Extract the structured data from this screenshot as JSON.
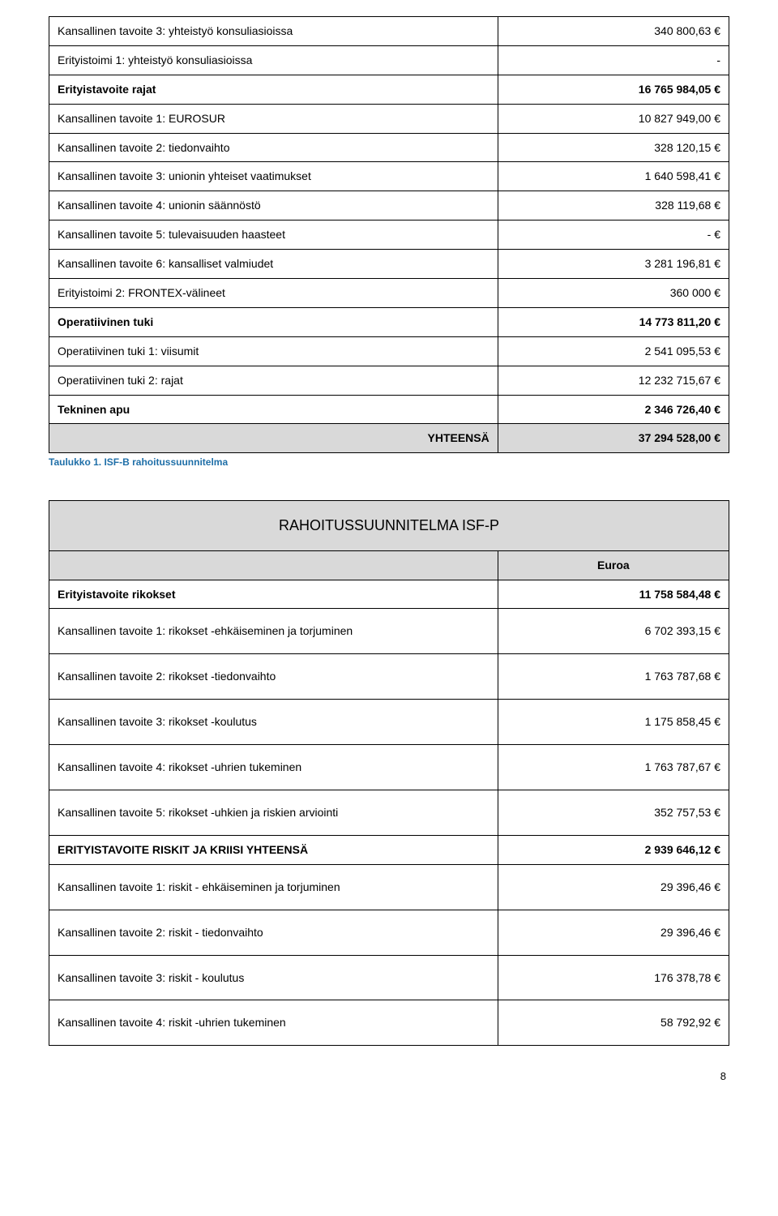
{
  "table1": {
    "rows": [
      {
        "label": "Kansallinen tavoite 3: yhteistyö konsuliasioissa",
        "value": "340 800,63 €",
        "labelBold": false,
        "valueBold": false,
        "bg": false
      },
      {
        "label": "Erityistoimi 1: yhteistyö konsuliasioissa",
        "value": "-",
        "labelBold": false,
        "valueBold": false,
        "bg": false
      },
      {
        "label": "Erityistavoite rajat",
        "value": "16 765 984,05 €",
        "labelBold": true,
        "valueBold": true,
        "bg": false
      },
      {
        "label": "Kansallinen tavoite 1: EUROSUR",
        "value": "10 827 949,00 €",
        "labelBold": false,
        "valueBold": false,
        "bg": false
      },
      {
        "label": "Kansallinen tavoite 2: tiedonvaihto",
        "value": "328 120,15 €",
        "labelBold": false,
        "valueBold": false,
        "bg": false
      },
      {
        "label": "Kansallinen tavoite 3: unionin yhteiset vaatimukset",
        "value": "1 640 598,41 €",
        "labelBold": false,
        "valueBold": false,
        "bg": false
      },
      {
        "label": "Kansallinen tavoite 4: unionin säännöstö",
        "value": "328 119,68 €",
        "labelBold": false,
        "valueBold": false,
        "bg": false
      },
      {
        "label": "Kansallinen tavoite 5: tulevaisuuden haasteet",
        "value": "- €",
        "labelBold": false,
        "valueBold": false,
        "bg": false
      },
      {
        "label": "Kansallinen tavoite 6: kansalliset valmiudet",
        "value": "3 281 196,81 €",
        "labelBold": false,
        "valueBold": false,
        "bg": false
      },
      {
        "label": "Erityistoimi 2: FRONTEX-välineet",
        "value": "360 000 €",
        "labelBold": false,
        "valueBold": false,
        "bg": false
      },
      {
        "label": "Operatiivinen tuki",
        "value": "14 773 811,20 €",
        "labelBold": true,
        "valueBold": true,
        "bg": false
      },
      {
        "label": "Operatiivinen tuki 1: viisumit",
        "value": "2 541 095,53 €",
        "labelBold": false,
        "valueBold": false,
        "bg": false
      },
      {
        "label": "Operatiivinen tuki 2: rajat",
        "value": "12 232 715,67 €",
        "labelBold": false,
        "valueBold": false,
        "bg": false
      },
      {
        "label": "Tekninen apu",
        "value": "2 346 726,40 €",
        "labelBold": true,
        "valueBold": true,
        "bg": false
      },
      {
        "label": "YHTEENSÄ",
        "value": "37 294 528,00 €",
        "labelBold": true,
        "valueBold": true,
        "bg": true,
        "labelRight": true
      }
    ],
    "caption": "Taulukko 1. ISF-B rahoitussuunnitelma"
  },
  "table2": {
    "title": "RAHOITUSSUUNNITELMA ISF-P",
    "euroa": "Euroa",
    "rows": [
      {
        "label": "Erityistavoite rikokset",
        "value": "11 758 584,48 €",
        "labelBold": true,
        "valueBold": true
      },
      {
        "label": "Kansallinen tavoite 1: rikokset -ehkäiseminen ja torjuminen",
        "value": "6 702 393,15 €",
        "labelBold": false,
        "valueBold": false
      },
      {
        "label": "Kansallinen tavoite 2: rikokset -tiedonvaihto",
        "value": "1 763 787,68 €",
        "labelBold": false,
        "valueBold": false
      },
      {
        "label": "Kansallinen tavoite 3: rikokset -koulutus",
        "value": "1 175 858,45 €",
        "labelBold": false,
        "valueBold": false
      },
      {
        "label": "Kansallinen tavoite 4: rikokset -uhrien tukeminen",
        "value": "1 763 787,67 €",
        "labelBold": false,
        "valueBold": false
      },
      {
        "label": "Kansallinen tavoite 5: rikokset -uhkien ja riskien arviointi",
        "value": "352 757,53 €",
        "labelBold": false,
        "valueBold": false
      },
      {
        "label": "ERITYISTAVOITE RISKIT JA KRIISI YHTEENSÄ",
        "value": "2 939 646,12 €",
        "labelBold": true,
        "valueBold": true
      },
      {
        "label": "Kansallinen tavoite 1: riskit - ehkäiseminen ja torjuminen",
        "value": "29 396,46 €",
        "labelBold": false,
        "valueBold": false
      },
      {
        "label": "Kansallinen tavoite 2: riskit - tiedonvaihto",
        "value": "29 396,46 €",
        "labelBold": false,
        "valueBold": false
      },
      {
        "label": "Kansallinen tavoite 3: riskit - koulutus",
        "value": "176 378,78 €",
        "labelBold": false,
        "valueBold": false
      },
      {
        "label": "Kansallinen tavoite 4: riskit -uhrien tukeminen",
        "value": "58 792,92 €",
        "labelBold": false,
        "valueBold": false
      }
    ]
  },
  "pageNumber": "8",
  "tallRows2": [
    2,
    3,
    4,
    5,
    6,
    8,
    9,
    10,
    11
  ]
}
